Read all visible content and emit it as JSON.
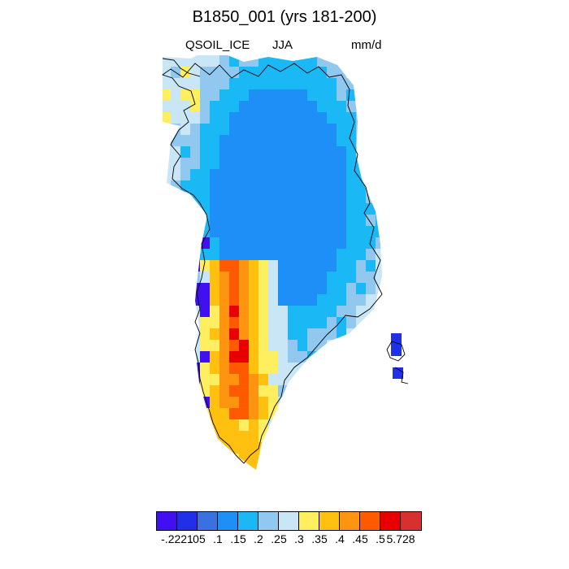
{
  "title": "B1850_001 (yrs 181-200)",
  "subtitle_left": "QSOIL_ICE",
  "subtitle_center": "JJA",
  "subtitle_right": "mm/d",
  "colorbar": {
    "colors": [
      "#4010f0",
      "#2030e8",
      "#3a70e0",
      "#1f8ff8",
      "#1ab8f5",
      "#90c8f0",
      "#c8e6f5",
      "#ffee60",
      "#ffc010",
      "#ff9410",
      "#ff5a00",
      "#e80000",
      "#d82f2f"
    ],
    "labels": [
      "-.2221",
      ".05",
      ".1",
      ".15",
      ".2",
      ".25",
      ".3",
      ".35",
      ".4",
      ".45",
      ".5",
      "5.728"
    ]
  }
}
